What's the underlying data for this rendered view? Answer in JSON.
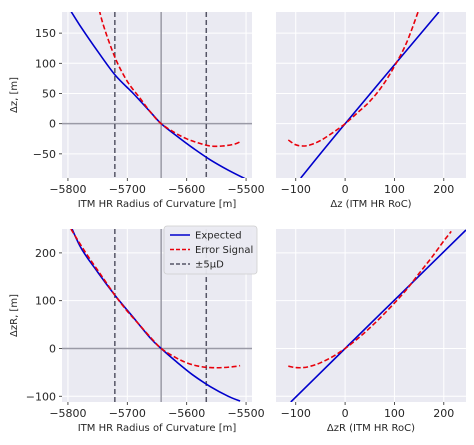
{
  "chart_data": [
    {
      "type": "line",
      "panel": "top-left",
      "xlabel": "ITM HR Radius of Curvature [m]",
      "ylabel": "Δz, [m]",
      "xlim": [
        -5810,
        -5490
      ],
      "ylim": [
        -90,
        185
      ],
      "xticks": [
        -5800,
        -5700,
        -5600,
        -5500
      ],
      "xtick_labels": [
        "−5800",
        "−5700",
        "−5600",
        "−5500"
      ],
      "yticks": [
        -50,
        0,
        50,
        100,
        150
      ],
      "ytick_labels": [
        "−50",
        "0",
        "50",
        "100",
        "150"
      ],
      "reference_lines": {
        "vertical_solid": -5643,
        "horizontal_solid": 0,
        "vertical_dashed": [
          -5721,
          -5567
        ]
      },
      "series": [
        {
          "name": "Expected",
          "color": "#0000cc",
          "style": "solid",
          "x": [
            -5810,
            -5780,
            -5750,
            -5720,
            -5690,
            -5660,
            -5643,
            -5620,
            -5590,
            -5560,
            -5530,
            -5500
          ],
          "y": [
            210,
            163,
            120,
            80,
            50,
            18,
            0,
            -18,
            -40,
            -60,
            -77,
            -92
          ]
        },
        {
          "name": "Error Signal",
          "color": "#e8000b",
          "style": "dashed",
          "x": [
            -5750,
            -5740,
            -5720,
            -5700,
            -5680,
            -5660,
            -5643,
            -5620,
            -5600,
            -5580,
            -5560,
            -5540,
            -5520,
            -5510
          ],
          "y": [
            200,
            162,
            108,
            70,
            44,
            18,
            0,
            -15,
            -25,
            -32,
            -37,
            -37,
            -34,
            -30
          ]
        }
      ]
    },
    {
      "type": "line",
      "panel": "top-right",
      "xlabel": "Δz (ITM HR RoC)",
      "xlim": [
        -140,
        245
      ],
      "ylim": [
        -90,
        185
      ],
      "xticks": [
        -100,
        0,
        100,
        200
      ],
      "xtick_labels": [
        "−100",
        "0",
        "100",
        "200"
      ],
      "series": [
        {
          "name": "Expected",
          "color": "#0000cc",
          "style": "solid",
          "x": [
            -90,
            0,
            190
          ],
          "y": [
            -90,
            0,
            185
          ]
        },
        {
          "name": "Error Signal",
          "color": "#e8000b",
          "style": "dashed",
          "x": [
            -115,
            -100,
            -85,
            -70,
            -50,
            -25,
            0,
            25,
            50,
            75,
            100,
            125,
            150
          ],
          "y": [
            -27,
            -35,
            -37,
            -35,
            -28,
            -15,
            0,
            18,
            37,
            62,
            95,
            135,
            190
          ]
        }
      ]
    },
    {
      "type": "line",
      "panel": "bottom-left",
      "xlabel": "ITM HR Radius of Curvature [m]",
      "ylabel": "ΔzR, [m]",
      "xlim": [
        -5810,
        -5490
      ],
      "ylim": [
        -112,
        250
      ],
      "xticks": [
        -5800,
        -5700,
        -5600,
        -5500
      ],
      "xtick_labels": [
        "−5800",
        "−5700",
        "−5600",
        "−5500"
      ],
      "yticks": [
        -100,
        0,
        100,
        200
      ],
      "ytick_labels": [
        "−100",
        "0",
        "100",
        "200"
      ],
      "reference_lines": {
        "vertical_solid": -5643,
        "horizontal_solid": 0,
        "vertical_dashed": [
          -5721,
          -5567
        ]
      },
      "series": [
        {
          "name": "Expected",
          "color": "#0000cc",
          "style": "solid",
          "x": [
            -5810,
            -5780,
            -5750,
            -5720,
            -5690,
            -5660,
            -5643,
            -5620,
            -5590,
            -5560,
            -5530,
            -5510
          ],
          "y": [
            300,
            215,
            160,
            110,
            65,
            20,
            0,
            -25,
            -55,
            -80,
            -100,
            -110
          ]
        },
        {
          "name": "Error Signal",
          "color": "#e8000b",
          "style": "dashed",
          "x": [
            -5795,
            -5770,
            -5745,
            -5720,
            -5700,
            -5680,
            -5660,
            -5643,
            -5620,
            -5600,
            -5580,
            -5560,
            -5540,
            -5520,
            -5510
          ],
          "y": [
            250,
            200,
            155,
            110,
            78,
            50,
            22,
            0,
            -18,
            -30,
            -37,
            -40,
            -40,
            -38,
            -36
          ]
        }
      ]
    },
    {
      "type": "line",
      "panel": "bottom-right",
      "xlabel": "ΔzR (ITM HR RoC)",
      "xlim": [
        -140,
        245
      ],
      "ylim": [
        -112,
        250
      ],
      "xticks": [
        -100,
        0,
        100,
        200
      ],
      "xtick_labels": [
        "−100",
        "0",
        "100",
        "200"
      ],
      "series": [
        {
          "name": "Expected",
          "color": "#0000cc",
          "style": "solid",
          "x": [
            -110,
            0,
            245
          ],
          "y": [
            -112,
            0,
            248
          ]
        },
        {
          "name": "Error Signal",
          "color": "#e8000b",
          "style": "dashed",
          "x": [
            -115,
            -100,
            -85,
            -70,
            -50,
            -25,
            0,
            25,
            50,
            75,
            100,
            125,
            150,
            175,
            200,
            215
          ],
          "y": [
            -37,
            -40,
            -40,
            -37,
            -30,
            -17,
            0,
            20,
            43,
            68,
            95,
            124,
            157,
            190,
            225,
            245
          ]
        }
      ]
    }
  ],
  "legend": {
    "placement": "bottom-left panel, top-right",
    "entries": [
      {
        "label": "Expected",
        "color": "#0000cc",
        "style": "solid"
      },
      {
        "label": "Error Signal",
        "color": "#e8000b",
        "style": "dashed"
      },
      {
        "label": "±5μD",
        "color": "#555566",
        "style": "dashed"
      }
    ]
  },
  "colors": {
    "axes_background": "#eaeaf2",
    "grid": "#ffffff",
    "reference_solid": "#9a9aa6",
    "reference_dashed": "#555566"
  }
}
